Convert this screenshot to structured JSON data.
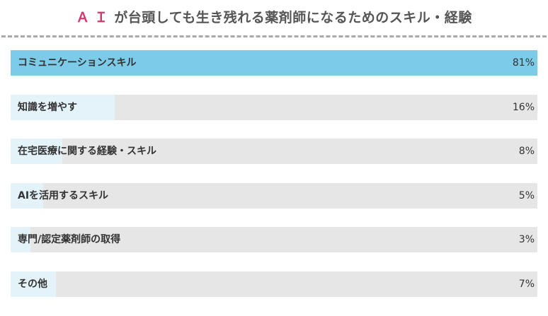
{
  "title": {
    "prefix": "ＡＩ",
    "text": "が台頭しても生き残れる薬剤師になるためのスキル・経験"
  },
  "colors": {
    "accent": "#d4386b",
    "top_fill": "#7ccbe8",
    "fill": "#e4f3fa",
    "track": "#e6e6e6"
  },
  "chart_data": {
    "type": "bar",
    "orientation": "horizontal",
    "title": "ＡＩが台頭しても生き残れる薬剤師になるためのスキル・経験",
    "categories": [
      "コミュニケーションスキル",
      "知識を増やす",
      "在宅医療に関する経験・スキル",
      "AIを活用するスキル",
      "専門/認定薬剤師の取得",
      "その他"
    ],
    "values": [
      81,
      16,
      8,
      5,
      3,
      7
    ],
    "value_labels": [
      "81%",
      "16%",
      "8%",
      "5%",
      "3%",
      "7%"
    ],
    "unit": "%",
    "xlim": [
      0,
      81
    ],
    "grid": false,
    "legend": "none"
  }
}
